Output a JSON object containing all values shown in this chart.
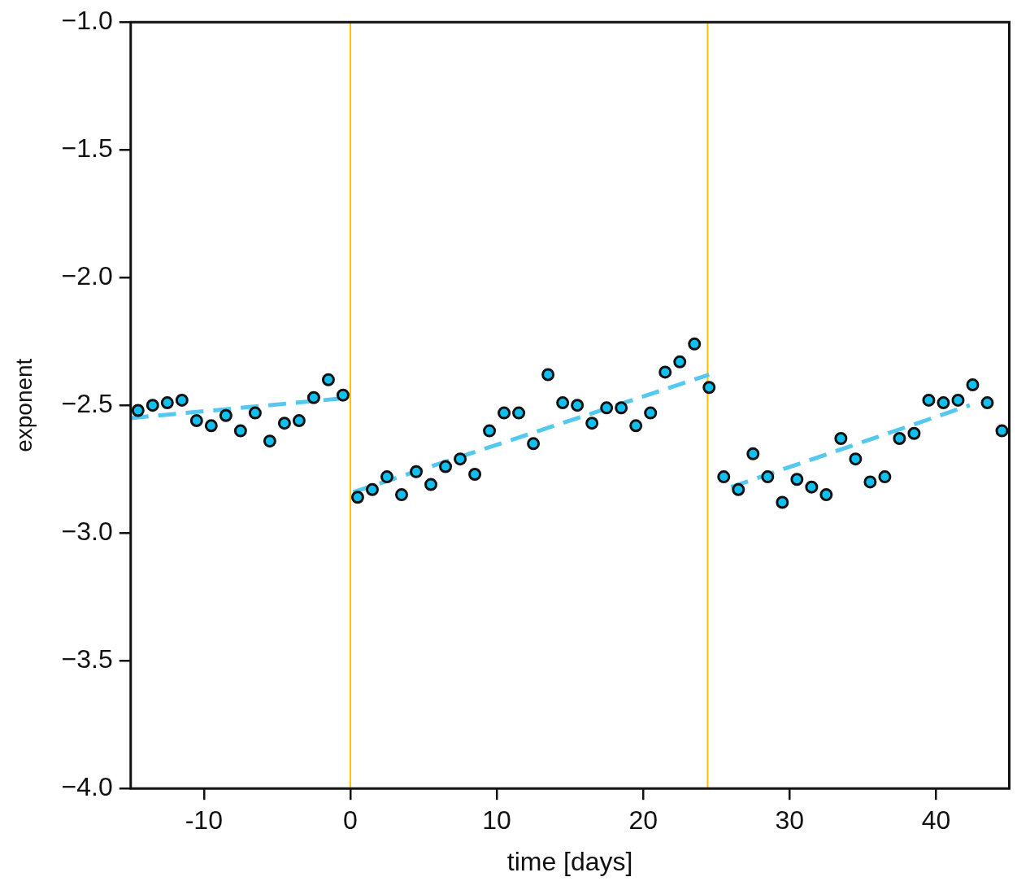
{
  "chart_data": {
    "type": "scatter",
    "xlabel": "time [days]",
    "ylabel": "exponent",
    "xlim": [
      -15,
      45
    ],
    "xticks": [
      -10,
      0,
      10,
      20,
      30,
      40
    ],
    "ylim": [
      -4.0,
      -1.0
    ],
    "yticks": [
      {
        "value": -4.0,
        "label": "−4.0"
      },
      {
        "value": -3.5,
        "label": "−3.5"
      },
      {
        "value": -3.0,
        "label": "−3.0"
      },
      {
        "value": -2.5,
        "label": "−2.5"
      },
      {
        "value": -2.0,
        "label": "−2.0"
      },
      {
        "value": -1.5,
        "label": "−1.5"
      },
      {
        "value": -1.0,
        "label": "−1.0"
      }
    ],
    "grid": false,
    "legend": false,
    "marker": "circle",
    "ref_lines": [
      {
        "axis": "x",
        "value": 0,
        "color": "#ffc000"
      },
      {
        "axis": "x",
        "value": 24.4,
        "color": "#ffc000"
      }
    ],
    "series": [
      {
        "color": "#10c0f0",
        "x": [
          -14.5,
          -13.5,
          -12.5,
          -11.5,
          -10.5,
          -9.5,
          -8.5,
          -7.5,
          -6.5,
          -5.5,
          -4.5,
          -3.5,
          -2.5,
          -1.5,
          -0.5,
          0.5,
          1.5,
          2.5,
          3.5,
          4.5,
          5.5,
          6.5,
          7.5,
          8.5,
          9.5,
          10.5,
          11.5,
          12.5,
          13.5,
          14.5,
          15.5,
          16.5,
          17.5,
          18.5,
          19.5,
          20.5,
          21.5,
          22.5,
          23.5,
          24.5,
          25.5,
          26.5,
          27.5,
          28.5,
          29.5,
          30.5,
          31.5,
          32.5,
          33.5,
          34.5,
          35.5,
          36.5,
          37.5,
          38.5,
          39.5,
          40.5,
          41.5,
          42.5,
          43.5,
          44.5
        ],
        "values": [
          -2.52,
          -2.5,
          -2.49,
          -2.48,
          -2.56,
          -2.58,
          -2.54,
          -2.6,
          -2.53,
          -2.64,
          -2.57,
          -2.56,
          -2.47,
          -2.4,
          -2.46,
          -2.86,
          -2.83,
          -2.78,
          -2.85,
          -2.76,
          -2.81,
          -2.74,
          -2.71,
          -2.77,
          -2.6,
          -2.53,
          -2.53,
          -2.65,
          -2.38,
          -2.49,
          -2.5,
          -2.57,
          -2.51,
          -2.51,
          -2.58,
          -2.53,
          -2.37,
          -2.33,
          -2.26,
          -2.43,
          -2.78,
          -2.83,
          -2.69,
          -2.78,
          -2.88,
          -2.79,
          -2.82,
          -2.85,
          -2.63,
          -2.71,
          -2.8,
          -2.78,
          -2.63,
          -2.61,
          -2.48,
          -2.49,
          -2.48,
          -2.42,
          -2.49,
          -2.6
        ]
      },
      {
        "type": "line",
        "color": "#55c8f0",
        "line_style": "dashed",
        "marker": "none",
        "x": [
          -15,
          0
        ],
        "values": [
          -2.55,
          -2.47
        ]
      },
      {
        "type": "line",
        "color": "#55c8f0",
        "line_style": "dashed",
        "marker": "none",
        "x": [
          0.2,
          24.5
        ],
        "values": [
          -2.84,
          -2.38
        ]
      },
      {
        "type": "line",
        "color": "#55c8f0",
        "line_style": "dashed",
        "marker": "none",
        "x": [
          26,
          42.3
        ],
        "values": [
          -2.82,
          -2.5
        ]
      }
    ]
  }
}
